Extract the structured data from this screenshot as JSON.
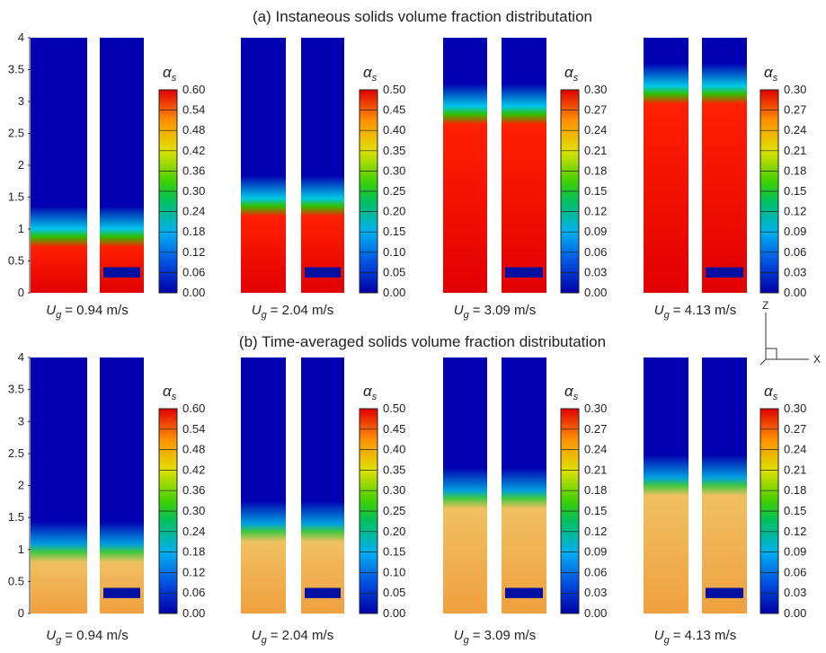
{
  "panels": [
    {
      "title": "(a) Instaneous solids volume fraction distributation",
      "y_ticks": [
        "0",
        "0.5",
        "1",
        "1.5",
        "2",
        "2.5",
        "3",
        "3.5",
        "4"
      ],
      "plots": [
        {
          "colorbar_symbol": "α",
          "colorbar_sub": "s",
          "colorbar_ticks": [
            "0.60",
            "0.54",
            "0.48",
            "0.42",
            "0.36",
            "0.30",
            "0.24",
            "0.18",
            "0.12",
            "0.06",
            "0.00"
          ],
          "label_symbol": "U",
          "label_sub": "g",
          "label_value": "= 0.94 m/s"
        },
        {
          "colorbar_symbol": "α",
          "colorbar_sub": "s",
          "colorbar_ticks": [
            "0.50",
            "0.45",
            "0.40",
            "0.35",
            "0.30",
            "0.25",
            "0.20",
            "0.15",
            "0.10",
            "0.05",
            "0.00"
          ],
          "label_symbol": "U",
          "label_sub": "g",
          "label_value": "= 2.04 m/s"
        },
        {
          "colorbar_symbol": "α",
          "colorbar_sub": "s",
          "colorbar_ticks": [
            "0.30",
            "0.27",
            "0.24",
            "0.21",
            "0.18",
            "0.15",
            "0.12",
            "0.09",
            "0.06",
            "0.03",
            "0.00"
          ],
          "label_symbol": "U",
          "label_sub": "g",
          "label_value": "= 3.09 m/s"
        },
        {
          "colorbar_symbol": "α",
          "colorbar_sub": "s",
          "colorbar_ticks": [
            "0.30",
            "0.27",
            "0.24",
            "0.21",
            "0.18",
            "0.15",
            "0.12",
            "0.09",
            "0.06",
            "0.03",
            "0.00"
          ],
          "label_symbol": "U",
          "label_sub": "g",
          "label_value": "= 4.13 m/s"
        }
      ]
    },
    {
      "title": "(b) Time-averaged solids volume fraction distributation",
      "y_ticks": [
        "0",
        "0.5",
        "1",
        "1.5",
        "2",
        "2.5",
        "3",
        "3.5",
        "4"
      ],
      "plots": [
        {
          "colorbar_symbol": "α",
          "colorbar_sub": "s",
          "colorbar_ticks": [
            "0.60",
            "0.54",
            "0.48",
            "0.42",
            "0.36",
            "0.30",
            "0.24",
            "0.18",
            "0.12",
            "0.06",
            "0.00"
          ],
          "label_symbol": "U",
          "label_sub": "g",
          "label_value": "= 0.94 m/s"
        },
        {
          "colorbar_symbol": "α",
          "colorbar_sub": "s",
          "colorbar_ticks": [
            "0.50",
            "0.45",
            "0.40",
            "0.35",
            "0.30",
            "0.25",
            "0.20",
            "0.15",
            "0.10",
            "0.05",
            "0.00"
          ],
          "label_symbol": "U",
          "label_sub": "g",
          "label_value": "= 2.04 m/s"
        },
        {
          "colorbar_symbol": "α",
          "colorbar_sub": "s",
          "colorbar_ticks": [
            "0.30",
            "0.27",
            "0.24",
            "0.21",
            "0.18",
            "0.15",
            "0.12",
            "0.09",
            "0.06",
            "0.03",
            "0.00"
          ],
          "label_symbol": "U",
          "label_sub": "g",
          "label_value": "= 3.09 m/s"
        },
        {
          "colorbar_symbol": "α",
          "colorbar_sub": "s",
          "colorbar_ticks": [
            "0.30",
            "0.27",
            "0.24",
            "0.21",
            "0.18",
            "0.15",
            "0.12",
            "0.09",
            "0.06",
            "0.03",
            "0.00"
          ],
          "label_symbol": "U",
          "label_sub": "g",
          "label_value": "= 4.13 m/s"
        }
      ]
    }
  ],
  "axes_icon": {
    "z": "Z",
    "x": "X"
  }
}
